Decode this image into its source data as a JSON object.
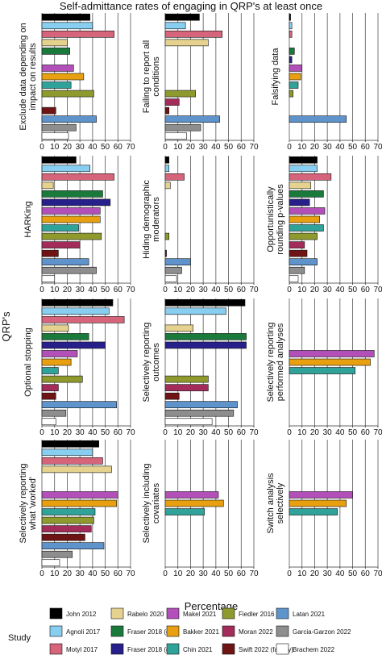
{
  "chart_data": {
    "type": "bar",
    "title": "Self-admittance rates of engaging in QRP's at least once",
    "xlabel": "Percentage",
    "ylabel": "QRP's",
    "xlim": [
      0,
      70
    ],
    "xticks": [
      0,
      10,
      20,
      30,
      40,
      50,
      60,
      70
    ],
    "grid": "vertical",
    "legend_title": "Study",
    "legend_position": "bottom",
    "studies": [
      {
        "name": "John 2012",
        "color": "#000000"
      },
      {
        "name": "Agnoli 2017",
        "color": "#87cef0"
      },
      {
        "name": "Motyl 2017",
        "color": "#d6647a"
      },
      {
        "name": "Rabelo 2020",
        "color": "#e5d28f"
      },
      {
        "name": "Fraser 2018 (eco)",
        "color": "#1a7a3c"
      },
      {
        "name": "Fraser 2018 (evo)",
        "color": "#27208a"
      },
      {
        "name": "Makel 2021",
        "color": "#b34fb8"
      },
      {
        "name": "Bakker 2021",
        "color": "#e8a010"
      },
      {
        "name": "Chin 2021",
        "color": "#2fa39a"
      },
      {
        "name": "Fiedler 2016",
        "color": "#8f9a2e"
      },
      {
        "name": "Moran 2022",
        "color": "#a32c5a"
      },
      {
        "name": "Swift 2022 (faculty)",
        "color": "#6e1414"
      },
      {
        "name": "Latan 2021",
        "color": "#5e93cc"
      },
      {
        "name": "Garcia-Garzon 2022",
        "color": "#8e8e8e"
      },
      {
        "name": "Brachem 2022",
        "color": "#ffffff"
      }
    ],
    "panels": [
      {
        "label": "Exclude data depending on impact on results",
        "values": [
          38,
          40,
          57,
          20,
          22,
          null,
          25,
          33,
          23,
          41,
          null,
          11,
          43,
          27,
          21
        ]
      },
      {
        "label": "Failing to report all conditions",
        "values": [
          27,
          16,
          45,
          34,
          null,
          null,
          null,
          null,
          null,
          24,
          11,
          3,
          43,
          28,
          17
        ]
      },
      {
        "label": "Falsifying data",
        "values": [
          1,
          2,
          2,
          null,
          4,
          2,
          10,
          9,
          7,
          3,
          null,
          null,
          45,
          null,
          null
        ]
      },
      {
        "label": "HARKing",
        "values": [
          27,
          38,
          57,
          9,
          48,
          54,
          46,
          46,
          29,
          47,
          30,
          13,
          37,
          43,
          10
        ]
      },
      {
        "label": "Hiding demographic moderators",
        "values": [
          3,
          3,
          15,
          4,
          null,
          null,
          null,
          null,
          null,
          3,
          null,
          1,
          20,
          13,
          9
        ]
      },
      {
        "label": "Opportunistically rounding p-values",
        "values": [
          22,
          22,
          33,
          17,
          27,
          16,
          28,
          24,
          27,
          22,
          12,
          14,
          22,
          12,
          7
        ]
      },
      {
        "label": "Optional stopping",
        "values": [
          56,
          53,
          65,
          21,
          37,
          50,
          28,
          23,
          13,
          32,
          13,
          11,
          59,
          19,
          11
        ]
      },
      {
        "label": "Selectively reporting outcomes",
        "values": [
          63,
          48,
          null,
          22,
          64,
          64,
          null,
          null,
          null,
          34,
          34,
          11,
          57,
          54,
          37
        ]
      },
      {
        "label": "Selectively reporting performed analyses",
        "values": [
          null,
          null,
          null,
          null,
          null,
          null,
          67,
          64,
          52,
          null,
          null,
          null,
          null,
          null,
          null
        ]
      },
      {
        "label": "Selectively reporting what 'worked'",
        "values": [
          45,
          40,
          48,
          55,
          null,
          null,
          60,
          59,
          42,
          41,
          39,
          34,
          49,
          24,
          14
        ]
      },
      {
        "label": "Selectively including covariates",
        "values": [
          null,
          null,
          null,
          null,
          null,
          null,
          42,
          46,
          31,
          null,
          null,
          null,
          null,
          null,
          null
        ]
      },
      {
        "label": "Switch analysis selectively",
        "values": [
          null,
          null,
          null,
          null,
          null,
          null,
          50,
          45,
          38,
          null,
          null,
          null,
          null,
          null,
          null
        ]
      }
    ]
  }
}
